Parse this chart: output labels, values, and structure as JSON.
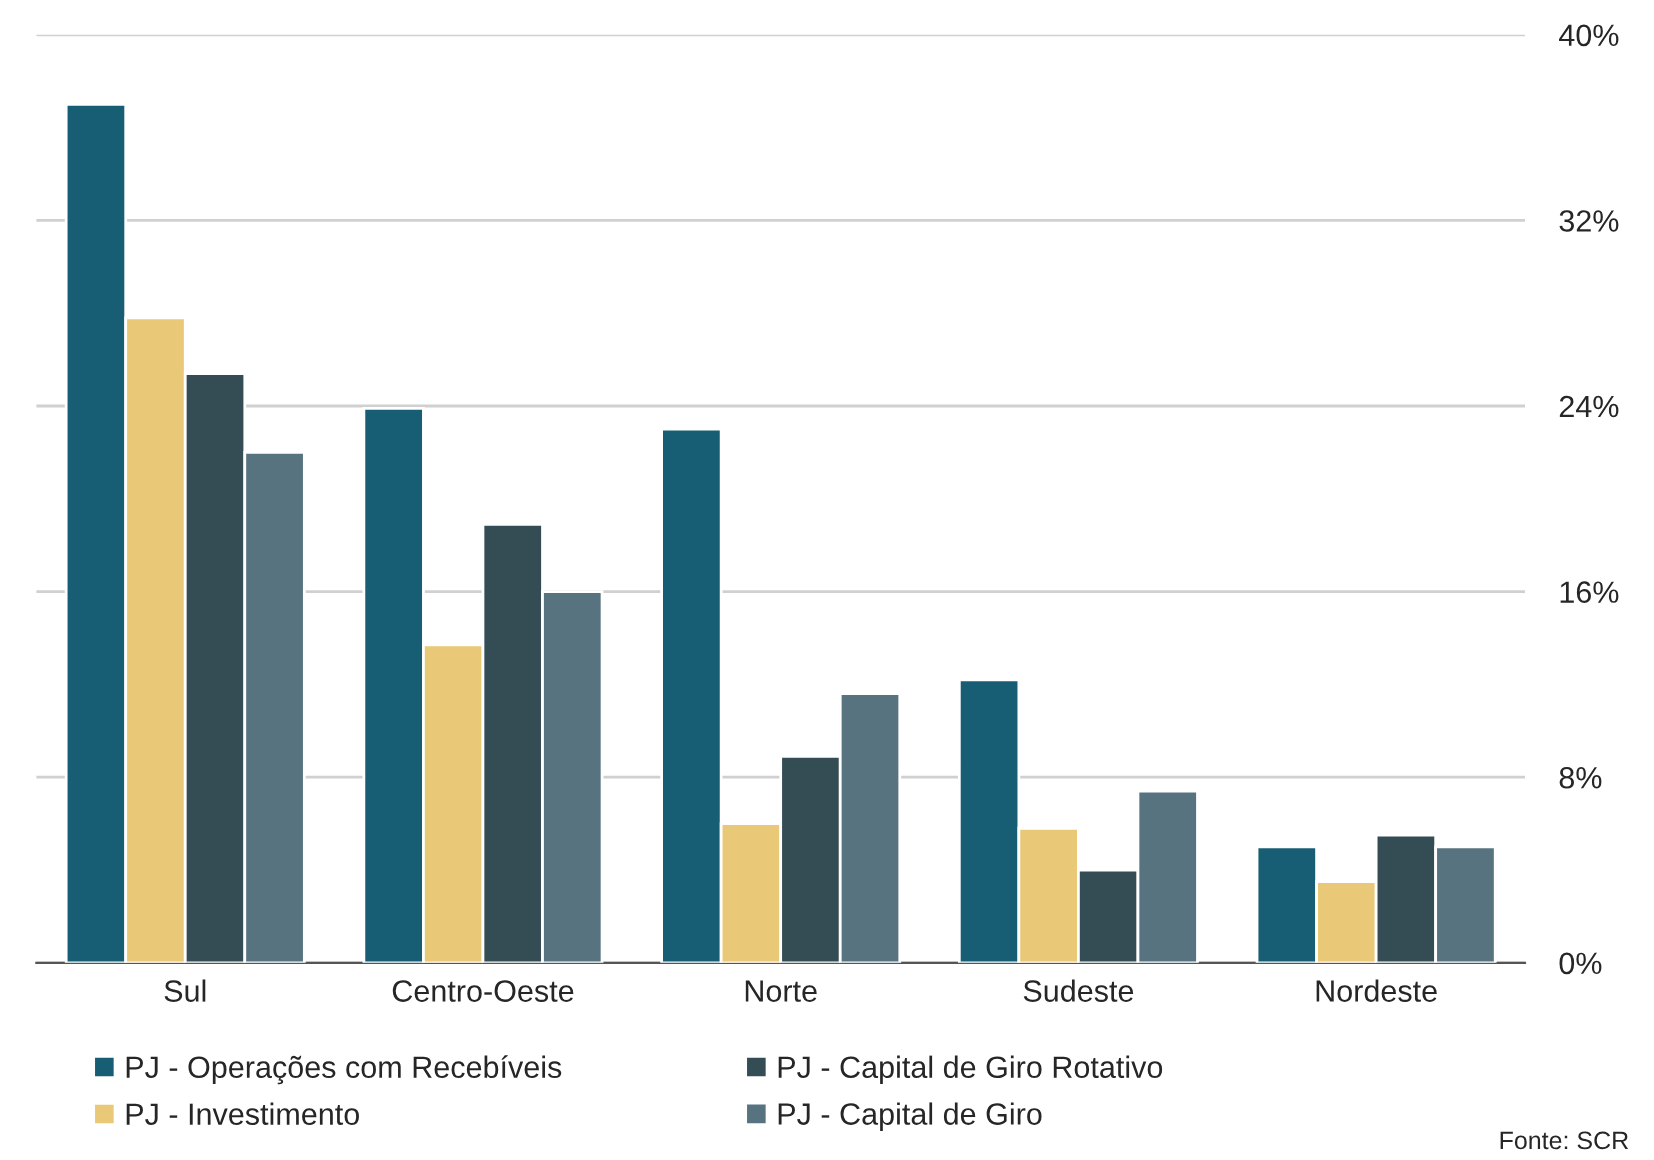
{
  "chart_data": {
    "type": "bar",
    "categories": [
      "Sul",
      "Centro-Oeste",
      "Norte",
      "Sudeste",
      "Nordeste"
    ],
    "series": [
      {
        "name": "PJ - Operações com Recebíveis",
        "color": "#175e75",
        "values": [
          37.0,
          23.9,
          23.0,
          12.2,
          5.0
        ]
      },
      {
        "name": "PJ - Investimento",
        "color": "#e9c877",
        "values": [
          27.8,
          13.7,
          6.0,
          5.8,
          3.5
        ]
      },
      {
        "name": "PJ - Capital de Giro Rotativo",
        "color": "#344c54",
        "values": [
          25.4,
          18.9,
          8.9,
          4.0,
          5.5
        ]
      },
      {
        "name": "PJ - Capital de Giro",
        "color": "#587380",
        "values": [
          22.0,
          16.0,
          11.6,
          7.4,
          5.0
        ]
      }
    ],
    "ylim": [
      0,
      40
    ],
    "yticks": [
      {
        "value": 0,
        "label": "0%"
      },
      {
        "value": 8,
        "label": "8%"
      },
      {
        "value": 16,
        "label": "16%"
      },
      {
        "value": 24,
        "label": "24%"
      },
      {
        "value": 32,
        "label": "32%"
      },
      {
        "value": 40,
        "label": "40%"
      }
    ],
    "grid": "y",
    "legend": "bottom",
    "annotations": [
      "Fonte: SCR"
    ]
  }
}
